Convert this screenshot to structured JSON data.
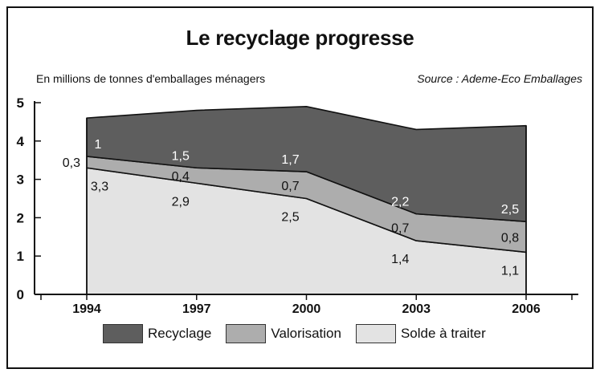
{
  "chart_data": {
    "type": "area",
    "stacked": true,
    "title": "Le recyclage progresse",
    "subtitle": "En millions de tonnes d'emballages ménagers",
    "source": "Source : Ademe-Eco Emballages",
    "x": [
      "1994",
      "1997",
      "2000",
      "2003",
      "2006"
    ],
    "ylim": [
      0,
      5
    ],
    "yticks": [
      "0",
      "1",
      "2",
      "3",
      "4",
      "5"
    ],
    "series": [
      {
        "name": "Solde à traiter",
        "values": [
          3.3,
          2.9,
          2.5,
          1.4,
          1.1
        ],
        "labels": [
          "3,3",
          "2,9",
          "2,5",
          "1,4",
          "1,1"
        ],
        "color": "#e3e3e3"
      },
      {
        "name": "Valorisation",
        "values": [
          0.3,
          0.4,
          0.7,
          0.7,
          0.8
        ],
        "labels": [
          "0,3",
          "0,4",
          "0,7",
          "0,7",
          "0,8"
        ],
        "color": "#adadad"
      },
      {
        "name": "Recyclage",
        "values": [
          1,
          1.5,
          1.7,
          2.2,
          2.5
        ],
        "labels": [
          "1",
          "1,5",
          "1,7",
          "2,2",
          "2,5"
        ],
        "color": "#5e5e5e"
      }
    ],
    "legend_order": [
      "Recyclage",
      "Valorisation",
      "Solde à traiter"
    ],
    "legend": "bottom"
  }
}
